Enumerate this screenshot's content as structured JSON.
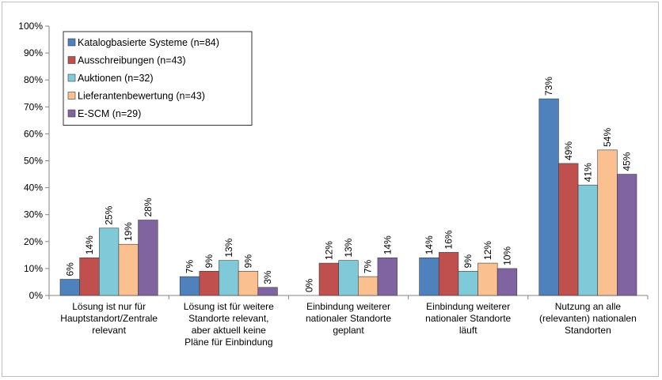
{
  "chart_data": {
    "type": "bar",
    "categories": [
      [
        "Lösung ist nur für",
        "Hauptstandort/Zentrale",
        "relevant"
      ],
      [
        "Lösung ist für weitere",
        "Standorte relevant,",
        "aber aktuell keine",
        "Pläne für Einbindung"
      ],
      [
        "Einbindung weiterer",
        "nationaler Standorte",
        "geplant"
      ],
      [
        "Einbindung weiterer",
        "nationaler Standorte",
        "läuft"
      ],
      [
        "Nutzung an alle",
        "(relevanten) nationalen",
        "Standorten"
      ]
    ],
    "series": [
      {
        "name": "Katalogbasierte Systeme (n=84)",
        "color": "#4f81bd",
        "values": [
          6,
          7,
          0,
          14,
          73
        ],
        "labels": [
          "6%",
          "7%",
          "0%",
          "14%",
          "73%"
        ]
      },
      {
        "name": "Ausschreibungen (n=43)",
        "color": "#c0504d",
        "values": [
          14,
          9,
          12,
          16,
          49
        ],
        "labels": [
          "14%",
          "9%",
          "12%",
          "16%",
          "49%"
        ]
      },
      {
        "name": "Auktionen (n=32)",
        "color": "#7fc9d9",
        "values": [
          25,
          13,
          13,
          9,
          41
        ],
        "labels": [
          "25%",
          "13%",
          "13%",
          "9%",
          "41%"
        ]
      },
      {
        "name": "Lieferantenbewertung (n=43)",
        "color": "#fac08f",
        "values": [
          19,
          9,
          7,
          12,
          54
        ],
        "labels": [
          "19%",
          "9%",
          "7%",
          "12%",
          "54%"
        ]
      },
      {
        "name": "E-SCM (n=29)",
        "color": "#8064a2",
        "values": [
          28,
          3,
          14,
          10,
          45
        ],
        "labels": [
          "28%",
          "3%",
          "14%",
          "10%",
          "45%"
        ]
      }
    ],
    "ylim": [
      0,
      100
    ],
    "yticks": [
      "0%",
      "10%",
      "20%",
      "30%",
      "40%",
      "50%",
      "60%",
      "70%",
      "80%",
      "90%",
      "100%"
    ],
    "grid": false,
    "legend": "top-left"
  }
}
